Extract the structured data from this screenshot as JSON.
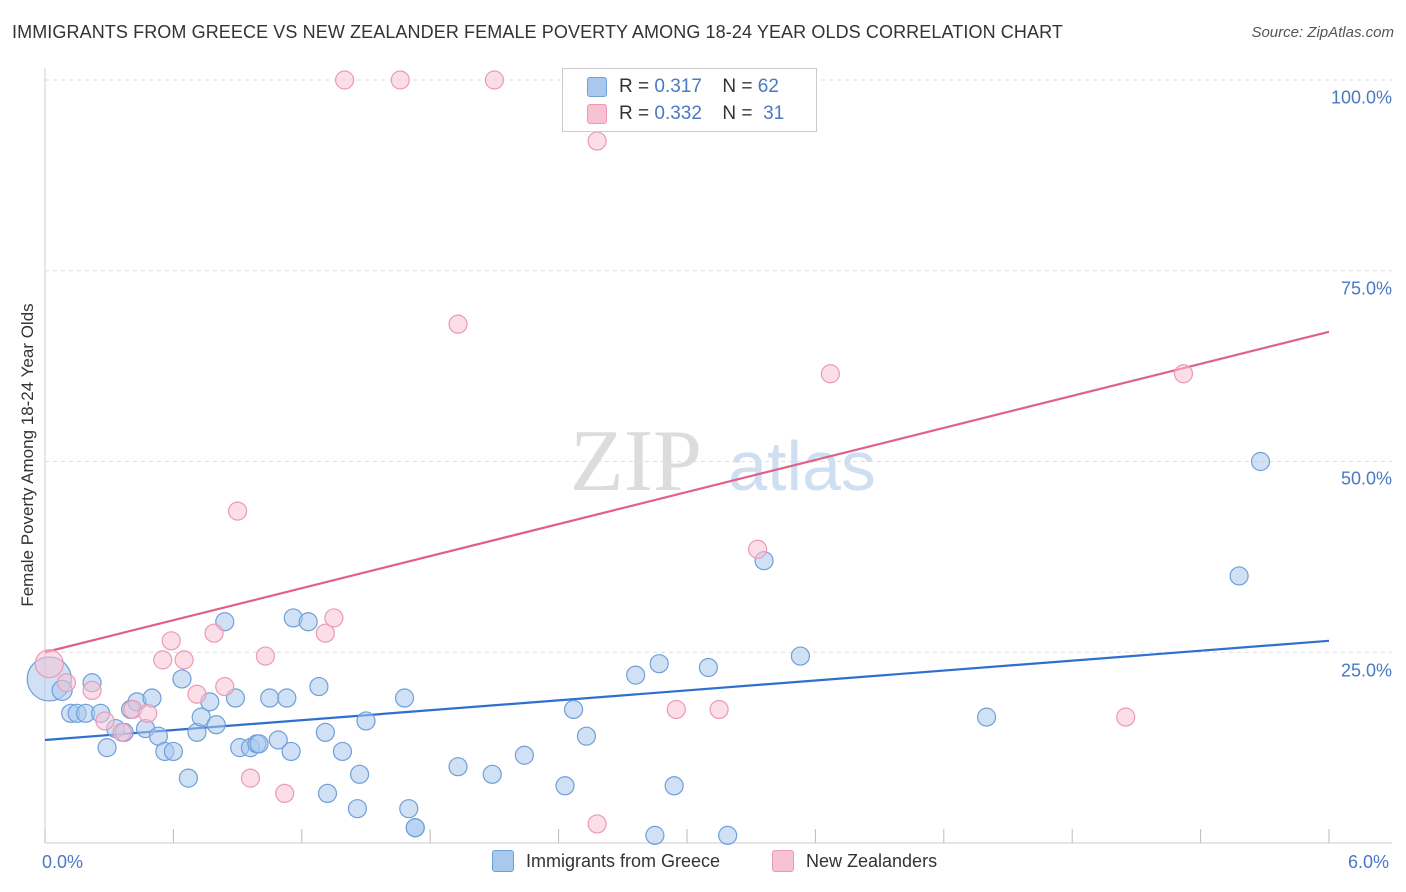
{
  "title": "IMMIGRANTS FROM GREECE VS NEW ZEALANDER FEMALE POVERTY AMONG 18-24 YEAR OLDS CORRELATION CHART",
  "source": "Source: ZipAtlas.com",
  "watermark": {
    "part1": "ZIP",
    "part2": "atlas"
  },
  "legend": {
    "rows": [
      {
        "r_label": "R =",
        "r_value": "0.317",
        "n_label": "N =",
        "n_value": "62"
      },
      {
        "r_label": "R =",
        "r_value": "0.332",
        "n_label": "N =",
        "n_value": "31"
      }
    ]
  },
  "bottom_legend": [
    "Immigrants from Greece",
    "New Zealanders"
  ],
  "colors": {
    "blue_fill": "#a9c8ee",
    "blue_stroke": "#6f9fd8",
    "blue_line": "#2f6fcf",
    "pink_fill": "#f7c3d3",
    "pink_stroke": "#ec9ab4",
    "pink_line": "#e0608a",
    "tick_text": "#4a79c4",
    "grid": "#dddddd"
  },
  "chart_data": {
    "type": "scatter",
    "title": "IMMIGRANTS FROM GREECE VS NEW ZEALANDER FEMALE POVERTY AMONG 18-24 YEAR OLDS CORRELATION CHART",
    "xlabel": "",
    "ylabel": "Female Poverty Among 18-24 Year Olds",
    "xlim": [
      0,
      6.0
    ],
    "ylim": [
      0,
      100
    ],
    "x_tick_labels": [
      "0.0%",
      "6.0%"
    ],
    "y_ticks": [
      25,
      50,
      75,
      100
    ],
    "y_tick_labels": [
      "25.0%",
      "50.0%",
      "75.0%",
      "100.0%"
    ],
    "series": [
      {
        "name": "Immigrants from Greece",
        "color": "blue",
        "trend": {
          "x": [
            0,
            6.0
          ],
          "y": [
            13.5,
            26.5
          ]
        },
        "points": [
          {
            "x": 0.02,
            "y": 21.5,
            "s": 22
          },
          {
            "x": 0.08,
            "y": 20.0,
            "s": 10
          },
          {
            "x": 0.12,
            "y": 17.0,
            "s": 9
          },
          {
            "x": 0.15,
            "y": 17.0,
            "s": 9
          },
          {
            "x": 0.19,
            "y": 17.0,
            "s": 9
          },
          {
            "x": 0.22,
            "y": 21.0,
            "s": 9
          },
          {
            "x": 0.26,
            "y": 17.0,
            "s": 9
          },
          {
            "x": 0.29,
            "y": 12.5,
            "s": 9
          },
          {
            "x": 0.33,
            "y": 15.0,
            "s": 9
          },
          {
            "x": 0.37,
            "y": 14.5,
            "s": 9
          },
          {
            "x": 0.4,
            "y": 17.5,
            "s": 9
          },
          {
            "x": 0.43,
            "y": 18.5,
            "s": 9
          },
          {
            "x": 0.47,
            "y": 15.0,
            "s": 9
          },
          {
            "x": 0.5,
            "y": 19.0,
            "s": 9
          },
          {
            "x": 0.53,
            "y": 14.0,
            "s": 9
          },
          {
            "x": 0.56,
            "y": 12.0,
            "s": 9
          },
          {
            "x": 0.6,
            "y": 12.0,
            "s": 9
          },
          {
            "x": 0.64,
            "y": 21.5,
            "s": 9
          },
          {
            "x": 0.67,
            "y": 8.5,
            "s": 9
          },
          {
            "x": 0.71,
            "y": 14.5,
            "s": 9
          },
          {
            "x": 0.73,
            "y": 16.5,
            "s": 9
          },
          {
            "x": 0.77,
            "y": 18.5,
            "s": 9
          },
          {
            "x": 0.8,
            "y": 15.5,
            "s": 9
          },
          {
            "x": 0.84,
            "y": 29.0,
            "s": 9
          },
          {
            "x": 0.89,
            "y": 19.0,
            "s": 9
          },
          {
            "x": 0.91,
            "y": 12.5,
            "s": 9
          },
          {
            "x": 0.96,
            "y": 12.5,
            "s": 9
          },
          {
            "x": 0.99,
            "y": 13.0,
            "s": 9
          },
          {
            "x": 1.0,
            "y": 13.0,
            "s": 9
          },
          {
            "x": 1.05,
            "y": 19.0,
            "s": 9
          },
          {
            "x": 1.09,
            "y": 13.5,
            "s": 9
          },
          {
            "x": 1.13,
            "y": 19.0,
            "s": 9
          },
          {
            "x": 1.15,
            "y": 12.0,
            "s": 9
          },
          {
            "x": 1.16,
            "y": 29.5,
            "s": 9
          },
          {
            "x": 1.23,
            "y": 29.0,
            "s": 9
          },
          {
            "x": 1.28,
            "y": 20.5,
            "s": 9
          },
          {
            "x": 1.31,
            "y": 14.5,
            "s": 9
          },
          {
            "x": 1.32,
            "y": 6.5,
            "s": 9
          },
          {
            "x": 1.39,
            "y": 12.0,
            "s": 9
          },
          {
            "x": 1.46,
            "y": 4.5,
            "s": 9
          },
          {
            "x": 1.47,
            "y": 9.0,
            "s": 9
          },
          {
            "x": 1.5,
            "y": 16.0,
            "s": 9
          },
          {
            "x": 1.68,
            "y": 19.0,
            "s": 9
          },
          {
            "x": 1.7,
            "y": 4.5,
            "s": 9
          },
          {
            "x": 1.73,
            "y": 2.0,
            "s": 9
          },
          {
            "x": 1.73,
            "y": 2.0,
            "s": 9
          },
          {
            "x": 1.93,
            "y": 10.0,
            "s": 9
          },
          {
            "x": 2.09,
            "y": 9.0,
            "s": 9
          },
          {
            "x": 2.24,
            "y": 11.5,
            "s": 9
          },
          {
            "x": 2.43,
            "y": 7.5,
            "s": 9
          },
          {
            "x": 2.47,
            "y": 17.5,
            "s": 9
          },
          {
            "x": 2.53,
            "y": 14.0,
            "s": 9
          },
          {
            "x": 2.76,
            "y": 22.0,
            "s": 9
          },
          {
            "x": 2.85,
            "y": 1.0,
            "s": 9
          },
          {
            "x": 2.87,
            "y": 23.5,
            "s": 9
          },
          {
            "x": 2.94,
            "y": 7.5,
            "s": 9
          },
          {
            "x": 3.1,
            "y": 23.0,
            "s": 9
          },
          {
            "x": 3.19,
            "y": 1.0,
            "s": 9
          },
          {
            "x": 3.36,
            "y": 37.0,
            "s": 9
          },
          {
            "x": 3.53,
            "y": 24.5,
            "s": 9
          },
          {
            "x": 4.4,
            "y": 16.5,
            "s": 9
          },
          {
            "x": 5.58,
            "y": 35.0,
            "s": 9
          },
          {
            "x": 5.68,
            "y": 50.0,
            "s": 9
          }
        ]
      },
      {
        "name": "New Zealanders",
        "color": "pink",
        "trend": {
          "x": [
            0,
            6.0
          ],
          "y": [
            25.0,
            67.0
          ]
        },
        "points": [
          {
            "x": 0.02,
            "y": 23.5,
            "s": 14
          },
          {
            "x": 0.1,
            "y": 21.0,
            "s": 9
          },
          {
            "x": 0.22,
            "y": 20.0,
            "s": 9
          },
          {
            "x": 0.28,
            "y": 16.0,
            "s": 9
          },
          {
            "x": 0.36,
            "y": 14.5,
            "s": 9
          },
          {
            "x": 0.41,
            "y": 17.5,
            "s": 9
          },
          {
            "x": 0.48,
            "y": 17.0,
            "s": 9
          },
          {
            "x": 0.55,
            "y": 24.0,
            "s": 9
          },
          {
            "x": 0.59,
            "y": 26.5,
            "s": 9
          },
          {
            "x": 0.65,
            "y": 24.0,
            "s": 9
          },
          {
            "x": 0.71,
            "y": 19.5,
            "s": 9
          },
          {
            "x": 0.79,
            "y": 27.5,
            "s": 9
          },
          {
            "x": 0.84,
            "y": 20.5,
            "s": 9
          },
          {
            "x": 0.9,
            "y": 43.5,
            "s": 9
          },
          {
            "x": 0.96,
            "y": 8.5,
            "s": 9
          },
          {
            "x": 1.03,
            "y": 24.5,
            "s": 9
          },
          {
            "x": 1.12,
            "y": 6.5,
            "s": 9
          },
          {
            "x": 1.31,
            "y": 27.5,
            "s": 9
          },
          {
            "x": 1.35,
            "y": 29.5,
            "s": 9
          },
          {
            "x": 1.4,
            "y": 100.0,
            "s": 9
          },
          {
            "x": 1.66,
            "y": 100.0,
            "s": 9
          },
          {
            "x": 1.93,
            "y": 68.0,
            "s": 9
          },
          {
            "x": 2.1,
            "y": 100.0,
            "s": 9
          },
          {
            "x": 2.58,
            "y": 92.0,
            "s": 9
          },
          {
            "x": 2.58,
            "y": 2.5,
            "s": 9
          },
          {
            "x": 2.95,
            "y": 17.5,
            "s": 9
          },
          {
            "x": 3.15,
            "y": 17.5,
            "s": 9
          },
          {
            "x": 3.33,
            "y": 38.5,
            "s": 9
          },
          {
            "x": 3.67,
            "y": 61.5,
            "s": 9
          },
          {
            "x": 5.05,
            "y": 16.5,
            "s": 9
          },
          {
            "x": 5.32,
            "y": 61.5,
            "s": 9
          }
        ]
      }
    ]
  }
}
